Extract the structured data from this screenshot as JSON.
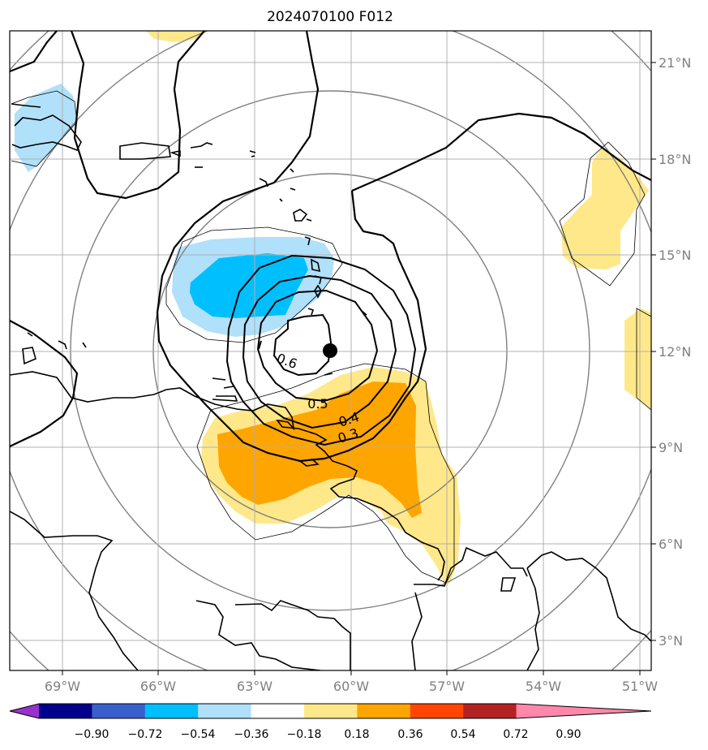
{
  "title": "2024070100 F012",
  "map": {
    "lon_ticks": [
      "69°W",
      "66°W",
      "63°W",
      "60°W",
      "57°W",
      "54°W",
      "51°W"
    ],
    "lat_ticks": [
      "21°N",
      "18°N",
      "15°N",
      "12°N",
      "9°N",
      "6°N",
      "3°N"
    ],
    "contour_labels": [
      "0.6",
      "0.5",
      "0.4",
      "0.3"
    ],
    "storm_center": {
      "lon": "60.7°W",
      "lat": "12.0°N"
    }
  },
  "colorbar": {
    "tick_labels": [
      "−0.90",
      "−0.72",
      "−0.54",
      "−0.36",
      "−0.18",
      "0.18",
      "0.36",
      "0.54",
      "0.72",
      "0.90"
    ],
    "colors": [
      "#9932cc",
      "#00008b",
      "#3a5fcd",
      "#00bfff",
      "#b0e0fa",
      "#ffffff",
      "#ffe88a",
      "#ffa500",
      "#ff4500",
      "#b22222",
      "#ff88aa"
    ]
  }
}
